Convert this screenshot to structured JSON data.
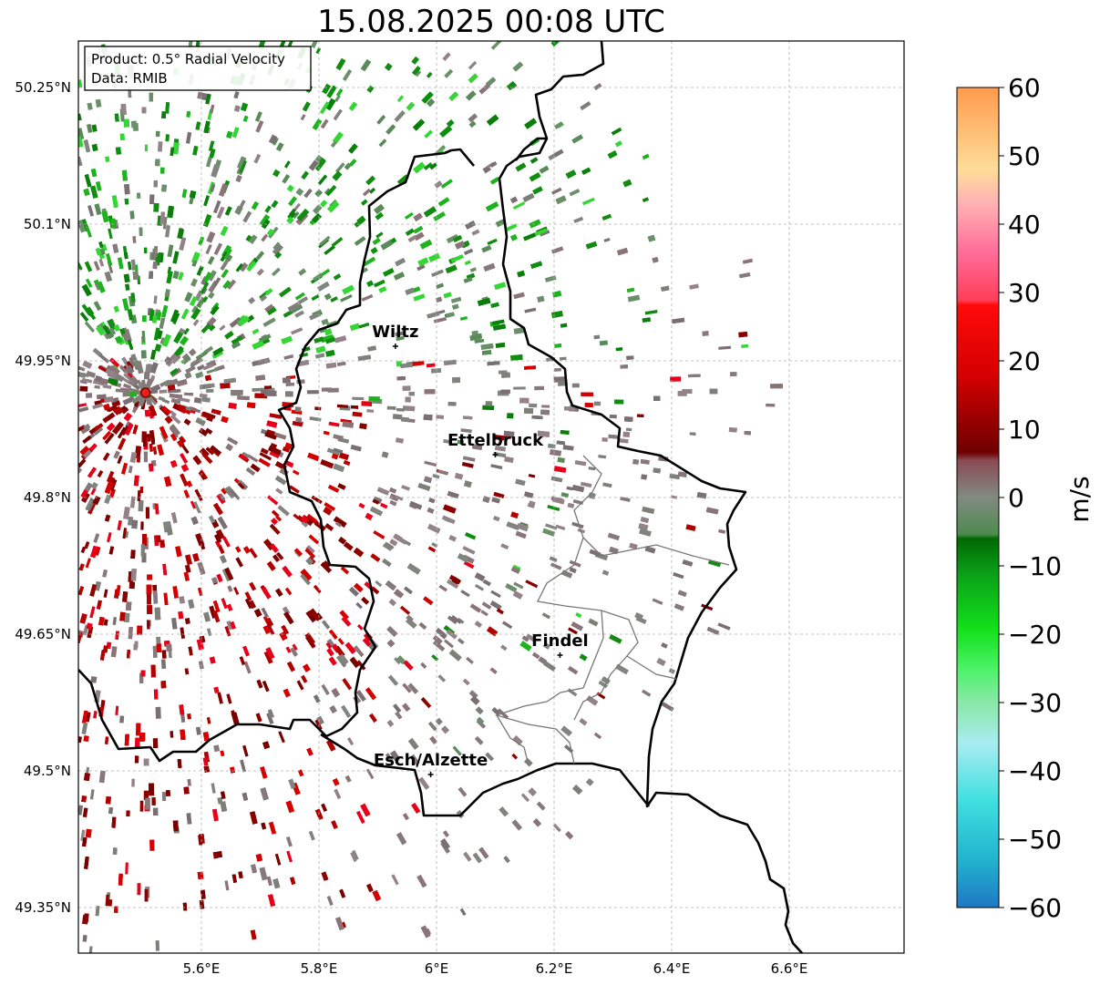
{
  "title": "15.08.2025 00:08 UTC",
  "info_box": {
    "product": "Product: 0.5° Radial Velocity",
    "source": "Data: RMIB"
  },
  "lat_ticks": [
    "50.25°N",
    "50.1°N",
    "49.95°N",
    "49.8°N",
    "49.65°N",
    "49.5°N",
    "49.35°N"
  ],
  "lon_ticks": [
    "5.6°E",
    "5.8°E",
    "6°E",
    "6.2°E",
    "6.4°E",
    "6.6°E"
  ],
  "cities": [
    {
      "name": "Wiltz",
      "lon": 5.93,
      "lat": 49.966
    },
    {
      "name": "Ettelbruck",
      "lon": 6.1,
      "lat": 49.847
    },
    {
      "name": "Findel",
      "lon": 6.21,
      "lat": 49.627
    },
    {
      "name": "Esch/Alzette",
      "lon": 5.99,
      "lat": 49.496
    }
  ],
  "radar_site": {
    "lon": 5.505,
    "lat": 49.915
  },
  "colorbar": {
    "label": "m/s",
    "min": -60,
    "max": 60,
    "ticks": [
      "60",
      "50",
      "40",
      "30",
      "20",
      "10",
      "0",
      "−10",
      "−20",
      "−30",
      "−40",
      "−50",
      "−60"
    ]
  },
  "colors": {
    "border": "#000000",
    "grid": "#b0b0b0",
    "radar_marker": "#e8201a"
  }
}
